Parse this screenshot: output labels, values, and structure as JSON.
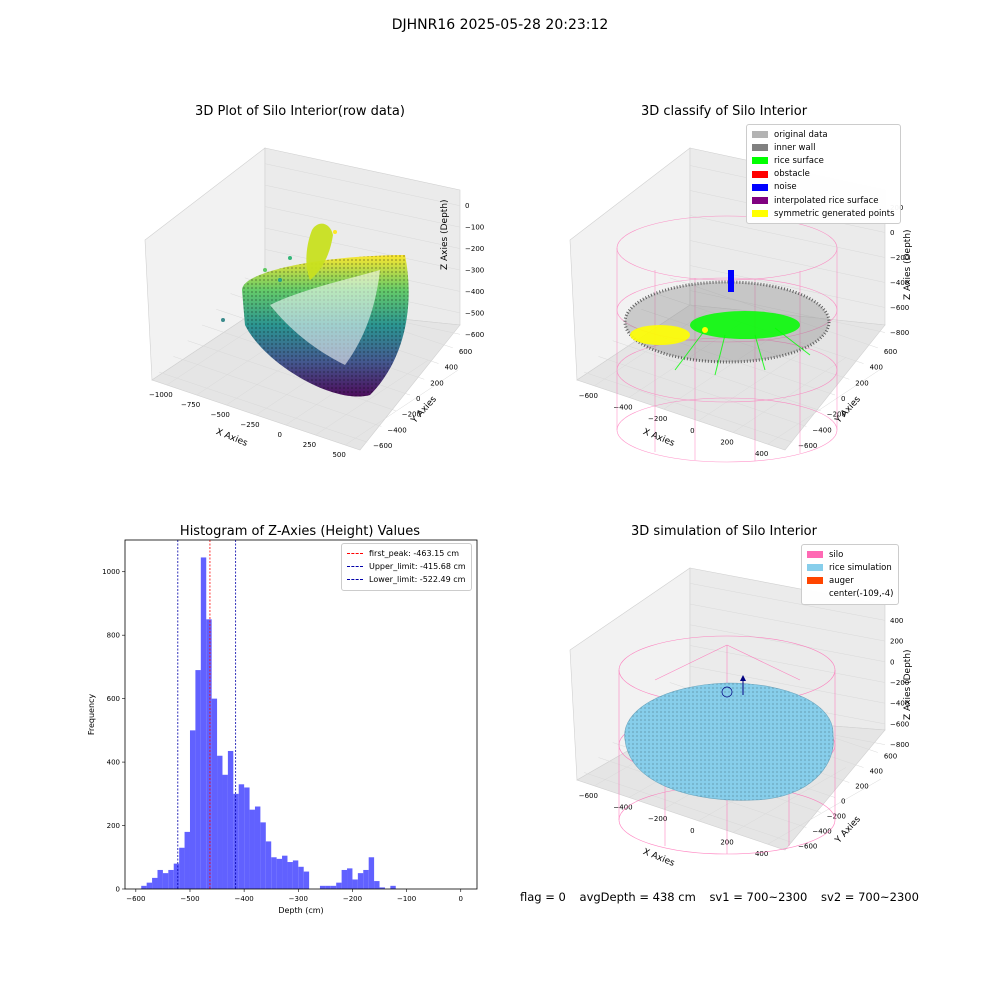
{
  "suptitle": "DJHNR16 2025-05-28 20:23:12",
  "chart_data": [
    {
      "type": "scatter",
      "title": "3D Plot of Silo Interior(row data)",
      "xlabel": "X Axies",
      "ylabel": "Y Axies",
      "zlabel": "Z Axies (Depth)",
      "x_ticks": [
        "−1000",
        "−750",
        "−500",
        "−250",
        "0",
        "250",
        "500"
      ],
      "y_ticks": [
        "−600",
        "−400",
        "−200",
        "0",
        "200",
        "400",
        "600"
      ],
      "z_ticks": [
        "−600",
        "−500",
        "−400",
        "−300",
        "−200",
        "−100",
        "0"
      ],
      "colormap": "viridis"
    },
    {
      "type": "scatter",
      "title": "3D classify of Silo Interior",
      "xlabel": "X Axies",
      "ylabel": "Y Axies",
      "zlabel": "Z Axies (Depth)",
      "x_ticks": [
        "−600",
        "−400",
        "−200",
        "0",
        "200",
        "400"
      ],
      "y_ticks": [
        "−600",
        "−400",
        "−200",
        "0",
        "200",
        "400",
        "600"
      ],
      "z_ticks": [
        "−800",
        "−600",
        "−400",
        "−200",
        "0",
        "200"
      ],
      "legend_placement": "top-right",
      "legend": [
        {
          "label": "original data",
          "color": "#b3b3b3"
        },
        {
          "label": "inner wall",
          "color": "#808080"
        },
        {
          "label": "rice surface",
          "color": "#00ff00"
        },
        {
          "label": "obstacle",
          "color": "#ff0000"
        },
        {
          "label": "noise",
          "color": "#0000ff"
        },
        {
          "label": "interpolated rice surface",
          "color": "#800080"
        },
        {
          "label": "symmetric generated points",
          "color": "#ffff00"
        }
      ]
    },
    {
      "type": "bar",
      "title": "Histogram of Z-Axies (Height) Values",
      "xlabel": "Depth (cm)",
      "ylabel": "Frequency",
      "xlim": [
        -620,
        30
      ],
      "ylim": [
        0,
        1100
      ],
      "x_ticks": [
        -600,
        -500,
        -400,
        -300,
        -200,
        -100,
        0
      ],
      "y_ticks": [
        0,
        200,
        400,
        600,
        800,
        1000
      ],
      "bar_color": "#5050ff",
      "bin_width": 10,
      "bin_starts": [
        -590,
        -580,
        -570,
        -560,
        -550,
        -540,
        -530,
        -520,
        -510,
        -500,
        -490,
        -480,
        -470,
        -460,
        -450,
        -440,
        -430,
        -420,
        -410,
        -400,
        -390,
        -380,
        -370,
        -360,
        -350,
        -340,
        -330,
        -320,
        -310,
        -300,
        -290,
        -280,
        -270,
        -260,
        -250,
        -240,
        -230,
        -220,
        -210,
        -200,
        -190,
        -180,
        -170,
        -160,
        -150,
        -140,
        -130,
        -120,
        -110,
        -100,
        -90,
        -80,
        -70,
        -60,
        -50,
        -40,
        -30,
        -20,
        -10
      ],
      "values": [
        10,
        20,
        35,
        60,
        50,
        60,
        80,
        130,
        180,
        500,
        690,
        1045,
        850,
        600,
        420,
        360,
        435,
        300,
        330,
        320,
        250,
        260,
        210,
        150,
        100,
        95,
        105,
        85,
        90,
        70,
        55,
        0,
        0,
        10,
        10,
        10,
        20,
        60,
        65,
        30,
        50,
        60,
        100,
        25,
        5,
        0,
        10,
        0,
        0,
        0,
        0,
        0,
        0,
        0,
        0,
        0,
        0,
        0,
        0
      ],
      "reference_lines": [
        {
          "label": "first_peak: -463.15 cm",
          "x": -463.15,
          "color": "#ff0000"
        },
        {
          "label": "Upper_limit: -415.68 cm",
          "x": -415.68,
          "color": "#0000aa"
        },
        {
          "label": "Lower_limit: -522.49 cm",
          "x": -522.49,
          "color": "#0000aa"
        }
      ],
      "legend_placement": "top-right"
    },
    {
      "type": "surface",
      "title": "3D simulation of Silo Interior",
      "xlabel": "X Axies",
      "ylabel": "Y Axies",
      "zlabel": "Z Axies (Depth)",
      "x_ticks": [
        "−600",
        "−400",
        "−200",
        "0",
        "200",
        "400"
      ],
      "y_ticks": [
        "−600",
        "−400",
        "−200",
        "0",
        "200",
        "400",
        "600"
      ],
      "z_ticks": [
        "−800",
        "−600",
        "−400",
        "−200",
        "0",
        "200",
        "400"
      ],
      "legend_placement": "top-right",
      "legend": [
        {
          "label": "silo",
          "color": "#ff69b4"
        },
        {
          "label": "rice simulation",
          "color": "#87ceeb"
        },
        {
          "label": "auger",
          "color": "#ff4500"
        },
        {
          "label": "center(-109,-4)",
          "color": ""
        }
      ]
    }
  ],
  "footer": {
    "flag": "flag = 0",
    "avg_depth": "avgDepth = 438 cm",
    "sv1": "sv1 = 700~2300",
    "sv2": "sv2 = 700~2300"
  }
}
